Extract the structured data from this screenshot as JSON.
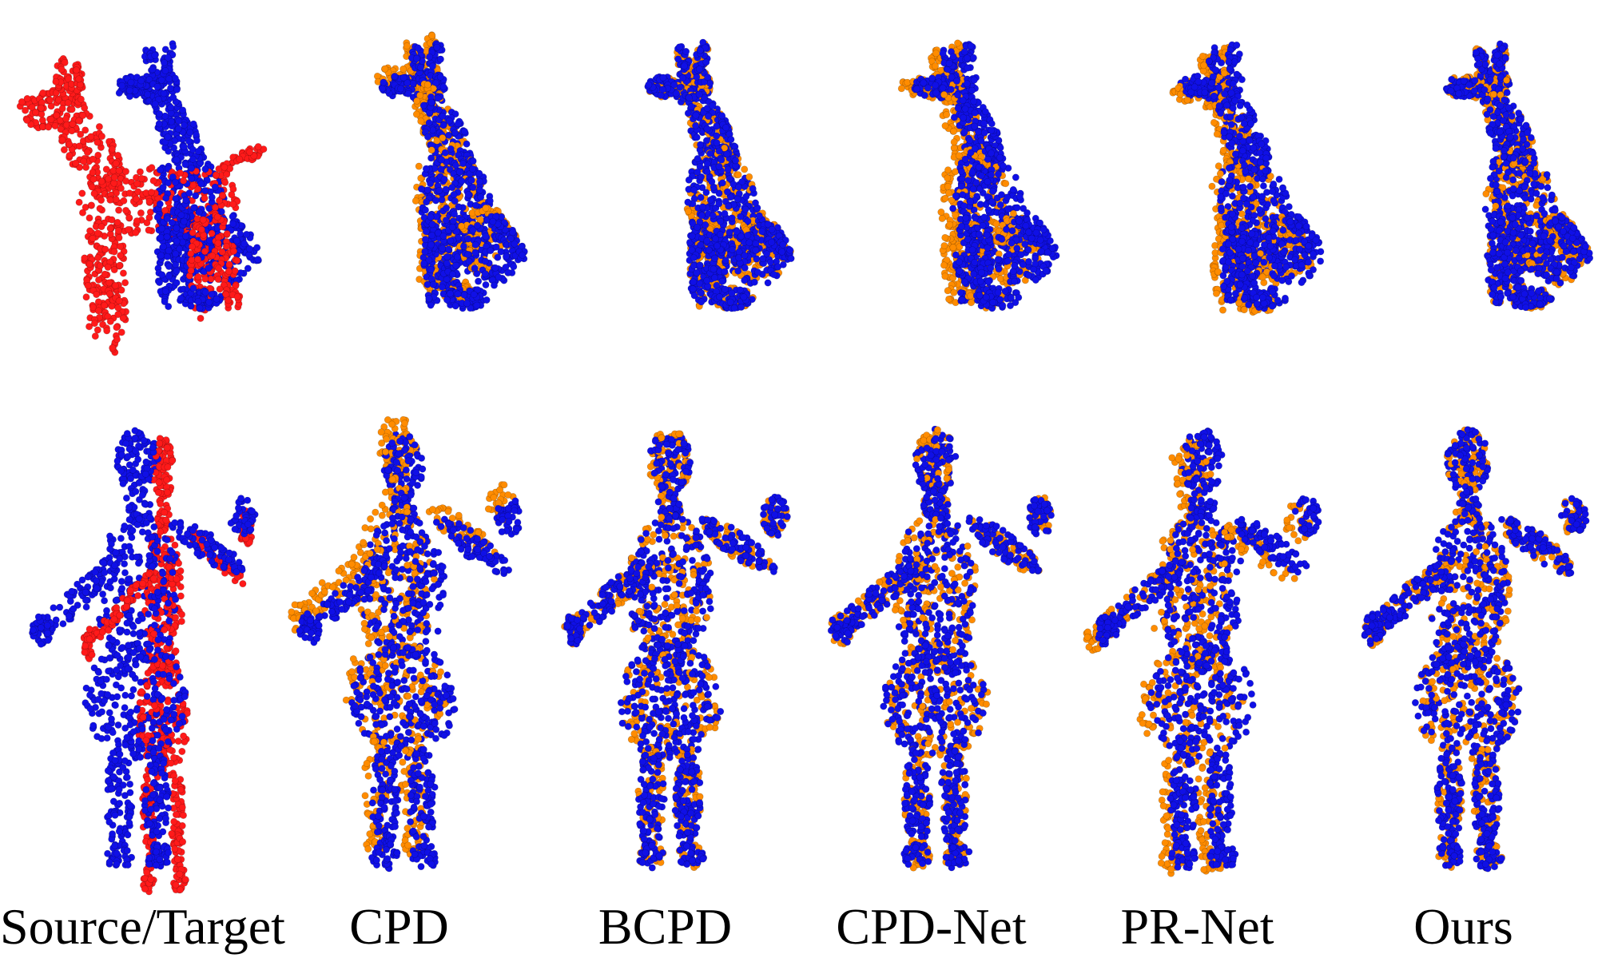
{
  "figure": {
    "methods": [
      {
        "label": "Source/Target",
        "moving_color": "#ff1a1a",
        "alignment": "unregistered"
      },
      {
        "label": "CPD",
        "moving_color": "#ff8c00",
        "alignment": "partial"
      },
      {
        "label": "BCPD",
        "moving_color": "#ff8c00",
        "alignment": "partial"
      },
      {
        "label": "CPD-Net",
        "moving_color": "#ff8c00",
        "alignment": "poor"
      },
      {
        "label": "PR-Net",
        "moving_color": "#ff8c00",
        "alignment": "poor"
      },
      {
        "label": "Ours",
        "moving_color": "#ff8c00",
        "alignment": "good"
      }
    ],
    "rows": [
      {
        "shape": "dog"
      },
      {
        "shape": "human"
      }
    ],
    "target_color": "#1010e6",
    "source_color": "#ff1a1a",
    "registered_color": "#ff8c00",
    "background": "#ffffff"
  }
}
